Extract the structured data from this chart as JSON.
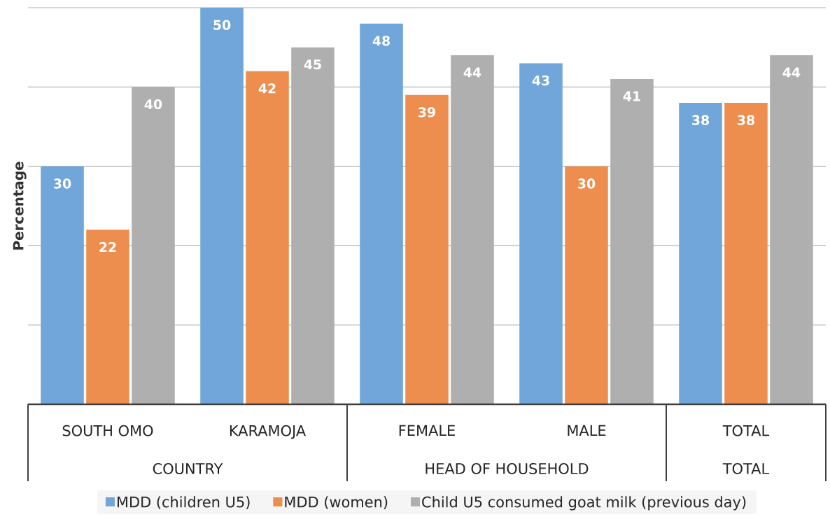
{
  "chart_data": {
    "type": "bar",
    "categories": [
      "SOUTH OMO",
      "KARAMOJA",
      "FEMALE",
      "MALE",
      "TOTAL"
    ],
    "series": [
      {
        "name": "MDD (children U5)",
        "color": "#70a6d9",
        "values": [
          30,
          50,
          48,
          43,
          38
        ]
      },
      {
        "name": "MDD (women)",
        "color": "#ed8e4f",
        "values": [
          22,
          42,
          39,
          30,
          38
        ]
      },
      {
        "name": "Child U5 consumed goat milk (previous day)",
        "color": "#afafaf",
        "values": [
          40,
          45,
          44,
          41,
          44
        ]
      }
    ],
    "ylabel": "Percentage",
    "annotations": [
      "COUNTRY",
      "HEAD OF HOUSEHOLD",
      "TOTAL"
    ],
    "ylim": [
      0,
      50
    ],
    "yticks": [
      {
        "value": 0,
        "label": null
      },
      {
        "value": 10,
        "label": null
      },
      {
        "value": 20,
        "label": null
      },
      {
        "value": 30,
        "label": null
      },
      {
        "value": 40,
        "label": null
      },
      {
        "value": 50,
        "label": null
      }
    ],
    "tick_labels": "x",
    "grid": "y",
    "legend": "bottom",
    "data_labels": true
  }
}
